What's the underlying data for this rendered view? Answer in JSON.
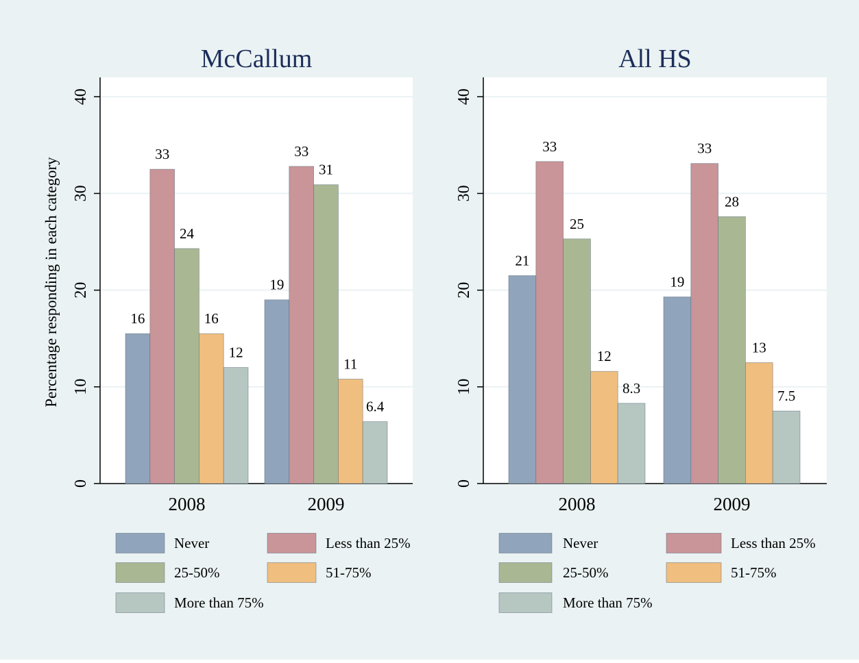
{
  "figure": {
    "ylabel": "Percentage responding in each category",
    "colors": {
      "background": "#EAF2F3",
      "plot_background": "#FFFFFF",
      "gridline": "#EAF2F3",
      "title": "#1C2D5A"
    },
    "legend_placement": "bottom"
  },
  "chart_data": [
    {
      "type": "bar",
      "title": "McCallum",
      "categories": [
        "2008",
        "2009"
      ],
      "ylim": [
        0,
        42
      ],
      "yticks": [
        0,
        10,
        20,
        30,
        40
      ],
      "grid": true,
      "series": [
        {
          "name": "Never",
          "color": "#90A4BB",
          "values": [
            15.5,
            19.0
          ],
          "labels": [
            "16",
            "19"
          ]
        },
        {
          "name": "Less than 25%",
          "color": "#C99598",
          "values": [
            32.5,
            32.8
          ],
          "labels": [
            "33",
            "33"
          ]
        },
        {
          "name": "25-50%",
          "color": "#A9B893",
          "values": [
            24.3,
            30.9
          ],
          "labels": [
            "24",
            "31"
          ]
        },
        {
          "name": "51-75%",
          "color": "#F0BE7E",
          "values": [
            15.5,
            10.8
          ],
          "labels": [
            "16",
            "11"
          ]
        },
        {
          "name": "More than 75%",
          "color": "#B6C6C1",
          "values": [
            12.0,
            6.4
          ],
          "labels": [
            "12",
            "6.4"
          ]
        }
      ]
    },
    {
      "type": "bar",
      "title": "All HS",
      "categories": [
        "2008",
        "2009"
      ],
      "ylim": [
        0,
        42
      ],
      "yticks": [
        0,
        10,
        20,
        30,
        40
      ],
      "grid": true,
      "series": [
        {
          "name": "Never",
          "color": "#90A4BB",
          "values": [
            21.5,
            19.3
          ],
          "labels": [
            "21",
            "19"
          ]
        },
        {
          "name": "Less than 25%",
          "color": "#C99598",
          "values": [
            33.3,
            33.1
          ],
          "labels": [
            "33",
            "33"
          ]
        },
        {
          "name": "25-50%",
          "color": "#A9B893",
          "values": [
            25.3,
            27.6
          ],
          "labels": [
            "25",
            "28"
          ]
        },
        {
          "name": "51-75%",
          "color": "#F0BE7E",
          "values": [
            11.6,
            12.5
          ],
          "labels": [
            "12",
            "13"
          ]
        },
        {
          "name": "More than 75%",
          "color": "#B6C6C1",
          "values": [
            8.3,
            7.5
          ],
          "labels": [
            "8.3",
            "7.5"
          ]
        }
      ]
    }
  ]
}
